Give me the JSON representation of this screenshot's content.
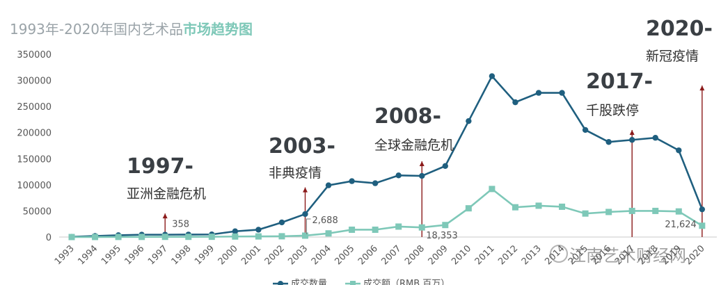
{
  "title": {
    "part1": "1993年-2020年国内艺术品",
    "part2": "市场趋势图"
  },
  "annotations": [
    {
      "year_label": "1997-",
      "text": "亚洲金融危机"
    },
    {
      "year_label": "2003-",
      "text": "非典疫情"
    },
    {
      "year_label": "2008-",
      "text": "全球金融危机"
    },
    {
      "year_label": "2017-",
      "text": "千股跌停"
    },
    {
      "year_label": "2020-",
      "text": "新冠疫情"
    }
  ],
  "watermark": "江南艺术财经网",
  "chart_data": {
    "type": "line",
    "categories": [
      "1993",
      "1994",
      "1995",
      "1996",
      "1997",
      "1998",
      "1999",
      "2000",
      "2001",
      "2002",
      "2003",
      "2004",
      "2005",
      "2006",
      "2007",
      "2008",
      "2009",
      "2010",
      "2011",
      "2012",
      "2013",
      "2014",
      "2015",
      "2016",
      "2017",
      "2018",
      "2019",
      "2020"
    ],
    "ylim": [
      0,
      350000
    ],
    "yticks": [
      0,
      50000,
      100000,
      150000,
      200000,
      250000,
      300000,
      350000
    ],
    "series": [
      {
        "name": "成交数量",
        "color": "#1f5f7f",
        "values": [
          500,
          2000,
          3500,
          4500,
          4500,
          4800,
          5000,
          11000,
          14000,
          28000,
          44000,
          99000,
          107000,
          103000,
          118000,
          117000,
          136000,
          222000,
          308000,
          258000,
          276000,
          276000,
          205000,
          182000,
          186000,
          190000,
          166000,
          53000
        ]
      },
      {
        "name": "成交额（RMB 百万）",
        "color": "#7ec8b8",
        "values": [
          0,
          100,
          200,
          250,
          358,
          400,
          500,
          1000,
          1200,
          1500,
          2688,
          7000,
          14000,
          14000,
          20000,
          18353,
          23000,
          55000,
          92000,
          57000,
          60000,
          58000,
          45000,
          48000,
          50000,
          50000,
          49000,
          21624
        ]
      }
    ],
    "data_labels": [
      {
        "text": "358",
        "series": 1,
        "index": 4
      },
      {
        "text": "2,688",
        "series": 1,
        "index": 10
      },
      {
        "text": "18,353",
        "series": 1,
        "index": 15
      },
      {
        "text": "21,624",
        "series": 1,
        "index": 27
      }
    ],
    "event_indices": [
      4,
      10,
      15,
      24,
      27
    ],
    "event_arrow_tops": [
      45000,
      95000,
      145000,
      205000,
      290000
    ],
    "grid": false,
    "legend_position": "bottom"
  }
}
